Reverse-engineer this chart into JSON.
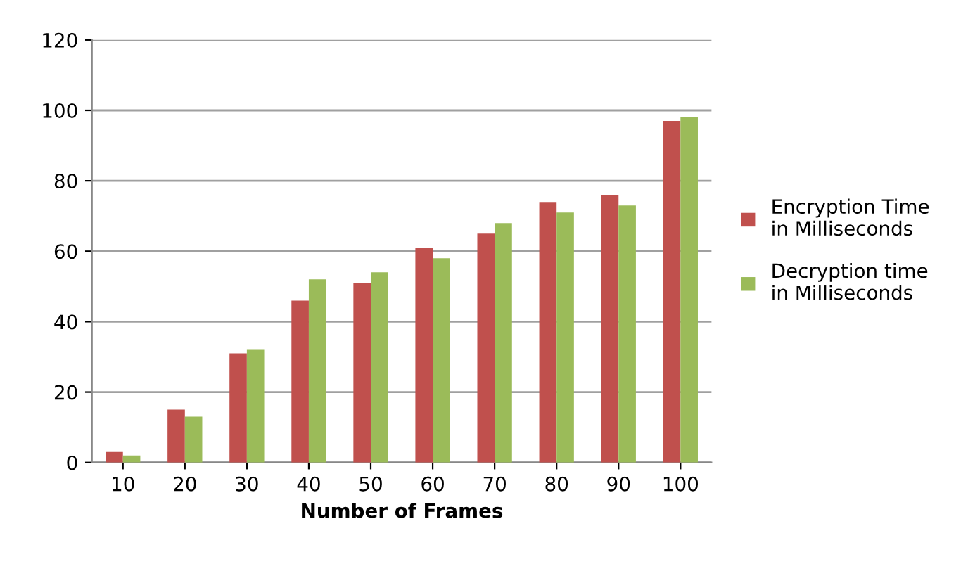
{
  "chart_data": {
    "type": "bar",
    "xlabel": "Number of Frames",
    "categories": [
      "10",
      "20",
      "30",
      "40",
      "50",
      "60",
      "70",
      "80",
      "90",
      "100"
    ],
    "series": [
      {
        "name": "Encryption Time\nin Milliseconds",
        "color": "#c0504d",
        "values": [
          3,
          15,
          31,
          46,
          51,
          61,
          65,
          74,
          76,
          97
        ]
      },
      {
        "name": "Decryption time\nin Milliseconds",
        "color": "#9bbb59",
        "values": [
          2,
          13,
          32,
          52,
          54,
          58,
          68,
          71,
          73,
          98
        ]
      }
    ],
    "ylim": [
      0,
      120
    ],
    "yticks": [
      0,
      20,
      40,
      60,
      80,
      100,
      120
    ],
    "grid": "y",
    "legend": "right"
  }
}
